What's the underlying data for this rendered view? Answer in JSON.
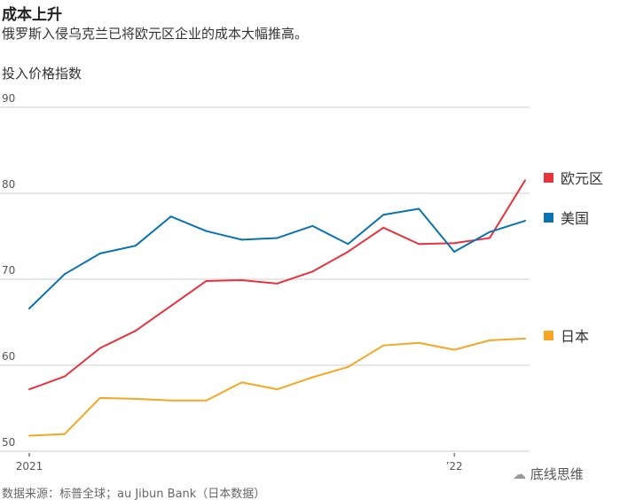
{
  "title": "成本上升",
  "subtitle": "俄罗斯入侵乌克兰已将欧元区企业的成本大幅推高。",
  "source": "数据来源：标普全球；au Jibun Bank（日本数据）",
  "watermark": "底线思维",
  "chart_data": {
    "type": "line",
    "ylabel": "投入价格指数",
    "ylim": [
      50,
      90
    ],
    "yticks": [
      "90",
      "80",
      "70",
      "60",
      "50"
    ],
    "ytick_values": [
      90,
      80,
      70,
      60,
      50
    ],
    "x": [
      "2021-01",
      "2021-02",
      "2021-03",
      "2021-04",
      "2021-05",
      "2021-06",
      "2021-07",
      "2021-08",
      "2021-09",
      "2021-10",
      "2021-11",
      "2021-12",
      "2022-01",
      "2022-02",
      "2022-03"
    ],
    "xticks": [
      {
        "label": "2021",
        "index": 0
      },
      {
        "label": "’22",
        "index": 12
      }
    ],
    "grid": true,
    "legend": "right",
    "series": [
      {
        "name": "欧元区",
        "color": "#e8323c",
        "values": [
          57.2,
          58.7,
          62.0,
          64.0,
          66.9,
          69.8,
          69.9,
          69.5,
          70.9,
          73.2,
          76.0,
          74.1,
          74.2,
          74.8,
          81.5
        ]
      },
      {
        "name": "美国",
        "color": "#0a72b0",
        "values": [
          66.6,
          70.6,
          73.0,
          73.9,
          77.3,
          75.6,
          74.6,
          74.8,
          76.2,
          74.1,
          77.5,
          78.2,
          73.2,
          75.5,
          76.8
        ]
      },
      {
        "name": "日本",
        "color": "#f5a623",
        "values": [
          51.8,
          52.0,
          56.2,
          56.1,
          55.9,
          55.9,
          58.0,
          57.2,
          58.6,
          59.8,
          62.3,
          62.6,
          61.8,
          62.9,
          63.1
        ]
      }
    ]
  }
}
